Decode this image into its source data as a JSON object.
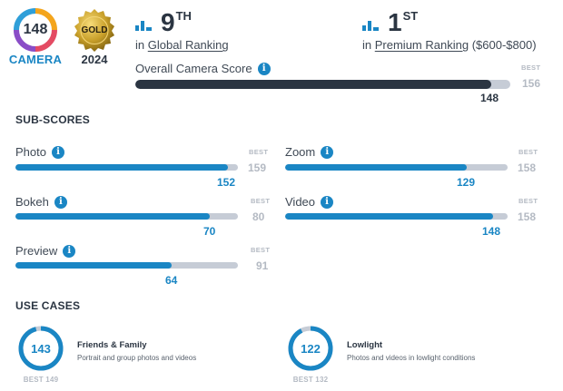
{
  "badges": {
    "score": "148",
    "category": "CAMERA",
    "medal": "GOLD",
    "year": "2024"
  },
  "rankings": {
    "global": {
      "num": "9",
      "sup": "TH",
      "prefix": "in",
      "link": "Global Ranking",
      "suffix": ""
    },
    "premium": {
      "num": "1",
      "sup": "ST",
      "prefix": "in",
      "link": "Premium Ranking",
      "suffix": "($600-$800)"
    }
  },
  "overall": {
    "label": "Overall Camera Score",
    "score": 148,
    "best": 156,
    "best_label": "BEST"
  },
  "subscores": {
    "title": "SUB-SCORES",
    "best_label": "BEST",
    "items": [
      {
        "label": "Photo",
        "score": 152,
        "best": 159
      },
      {
        "label": "Zoom",
        "score": 129,
        "best": 158
      },
      {
        "label": "Bokeh",
        "score": 70,
        "best": 80
      },
      {
        "label": "Video",
        "score": 148,
        "best": 158
      },
      {
        "label": "Preview",
        "score": 64,
        "best": 91
      }
    ]
  },
  "usecases": {
    "title": "USE CASES",
    "items": [
      {
        "score": 143,
        "best": 149,
        "best_text": "BEST 149",
        "title": "Friends & Family",
        "desc": "Portrait and group photos and videos"
      },
      {
        "score": 122,
        "best": 132,
        "best_text": "BEST 132",
        "title": "Lowlight",
        "desc": "Photos and videos in lowlight conditions"
      }
    ]
  },
  "colors": {
    "accent": "#1a86c4",
    "dark_bar": "#2b3542",
    "track": "#c6ccd6",
    "muted": "#b4bac3",
    "gold": "#c9a02a"
  },
  "icons": {
    "ranking": "bar-chart-icon",
    "info": "info-icon"
  }
}
